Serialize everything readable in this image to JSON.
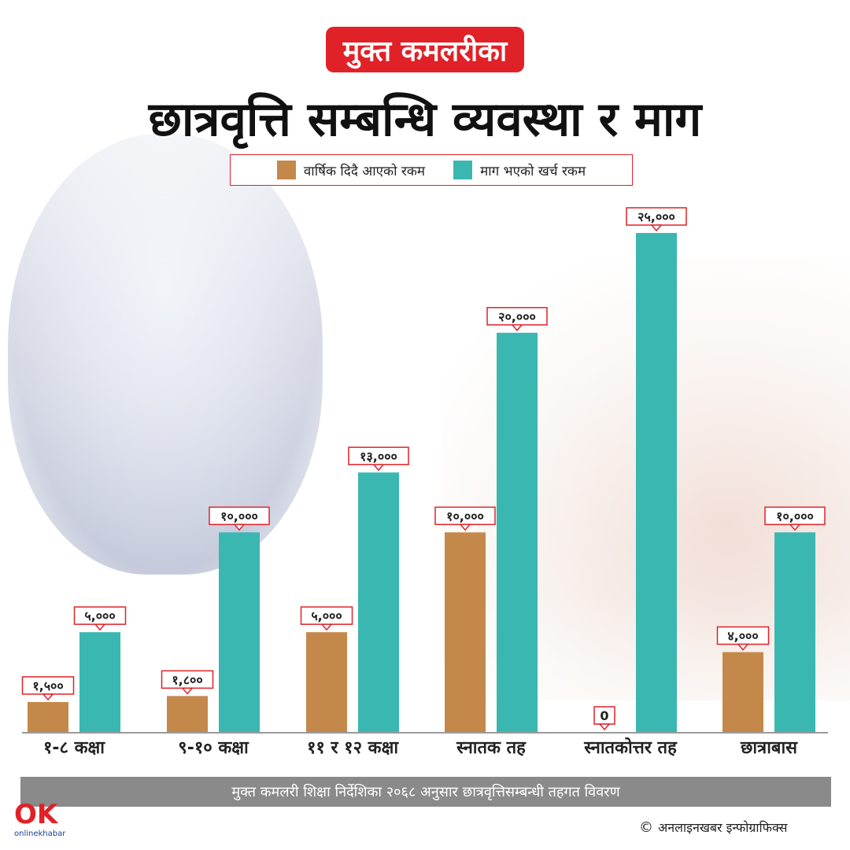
{
  "header": {
    "badge": "मुक्त कमलरीका",
    "title": "छात्रवृत्ति सम्बन्धि व्यवस्था र माग"
  },
  "legend": {
    "series_a": "वार्षिक दिदै आएको रकम",
    "series_b": "माग भएको खर्च रकम"
  },
  "colors": {
    "series_a": "#c4894a",
    "series_b": "#3bb7b1",
    "accent": "#e12128",
    "band": "#8a8a8a"
  },
  "chart_data": {
    "type": "bar",
    "categories": [
      "१-८ कक्षा",
      "९-१० कक्षा",
      "११ र १२ कक्षा",
      "स्नातक तह",
      "स्नातकोत्तर तह",
      "छात्राबास"
    ],
    "series": [
      {
        "name": "वार्षिक दिदै आएको रकम",
        "values": [
          1500,
          1800,
          5000,
          10000,
          0,
          4000
        ],
        "labels": [
          "१,५००",
          "१,८००",
          "५,०००",
          "१०,०००",
          "0",
          "४,०००"
        ]
      },
      {
        "name": "माग भएको खर्च रकम",
        "values": [
          5000,
          10000,
          13000,
          20000,
          25000,
          10000
        ],
        "labels": [
          "५,०००",
          "१०,०००",
          "१३,०००",
          "२०,०००",
          "२५,०००",
          "१०,०००"
        ]
      }
    ],
    "ylim": [
      0,
      25000
    ],
    "grid": false,
    "legend": "top-center"
  },
  "footer": {
    "note": "मुक्त कमलरी शिक्षा निर्देशिका २०६८ अनुसार छात्रवृत्तिसम्बन्धी तहगत विवरण",
    "credit": "अनलाइनखबर इन्फोग्राफिक्स",
    "copyright_symbol": "©",
    "logo_text": "OK",
    "logo_sub": "onlinekhabar"
  }
}
